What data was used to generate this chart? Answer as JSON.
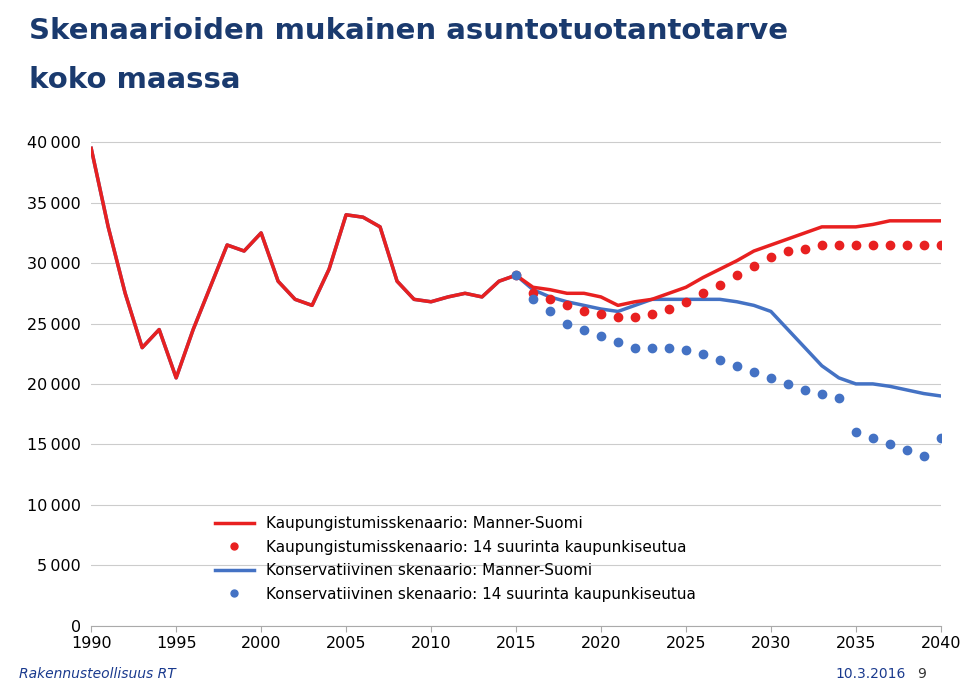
{
  "title_line1": "Skenaarioiden mukainen asuntotuotantotarve",
  "title_line2": "koko maassa",
  "footer_left": "Rakennusteollisuus RT",
  "footer_right": "10.3.2016",
  "footer_num": "9",
  "background_color": "#ffffff",
  "title_color": "#1a3a6e",
  "footer_color": "#1a3a8e",
  "years_all": [
    1990,
    1991,
    1992,
    1993,
    1994,
    1995,
    1996,
    1997,
    1998,
    1999,
    2000,
    2001,
    2002,
    2003,
    2004,
    2005,
    2006,
    2007,
    2008,
    2009,
    2010,
    2011,
    2012,
    2013,
    2014,
    2015,
    2016,
    2017,
    2018,
    2019,
    2020,
    2021,
    2022,
    2023,
    2024,
    2025,
    2026,
    2027,
    2028,
    2029,
    2030,
    2031,
    2032,
    2033,
    2034,
    2035,
    2036,
    2037,
    2038,
    2039,
    2040
  ],
  "kaupungi_manner": [
    39500,
    33000,
    27500,
    23000,
    24500,
    20500,
    24500,
    28000,
    31500,
    31000,
    32500,
    28500,
    27000,
    26500,
    29500,
    34000,
    33800,
    33000,
    28500,
    27000,
    26800,
    27200,
    27500,
    27200,
    28500,
    29000,
    28000,
    27800,
    27500,
    27500,
    27200,
    26500,
    26800,
    27000,
    27500,
    28000,
    28800,
    29500,
    30200,
    31000,
    31500,
    32000,
    32500,
    33000,
    33000,
    33000,
    33200,
    33500,
    33500,
    33500,
    33500
  ],
  "konserv_manner": [
    39500,
    33000,
    27500,
    23000,
    24500,
    20500,
    24500,
    28000,
    31500,
    31000,
    32500,
    28500,
    27000,
    26500,
    29500,
    34000,
    33800,
    33000,
    28500,
    27000,
    26800,
    27200,
    27500,
    27200,
    28500,
    29000,
    27800,
    27200,
    26800,
    26500,
    26200,
    26000,
    26500,
    27000,
    27000,
    27000,
    27000,
    27000,
    26800,
    26500,
    26000,
    24500,
    23000,
    21500,
    20500,
    20000,
    20000,
    19800,
    19500,
    19200,
    19000
  ],
  "years_dot": [
    2015,
    2016,
    2017,
    2018,
    2019,
    2020,
    2021,
    2022,
    2023,
    2024,
    2025,
    2026,
    2027,
    2028,
    2029,
    2030,
    2031,
    2032,
    2033,
    2034,
    2035,
    2036,
    2037,
    2038,
    2039,
    2040
  ],
  "kaupungi_14": [
    29000,
    27500,
    27000,
    26500,
    26000,
    25800,
    25500,
    25500,
    25800,
    26200,
    26800,
    27500,
    28200,
    29000,
    29800,
    30500,
    31000,
    31200,
    31500,
    31500,
    31500,
    31500,
    31500,
    31500,
    31500,
    31500
  ],
  "konserv_14": [
    29000,
    27000,
    26000,
    25000,
    24500,
    24000,
    23500,
    23000,
    23000,
    23000,
    22800,
    22500,
    22000,
    21500,
    21000,
    20500,
    20000,
    19500,
    19200,
    18800,
    16000,
    15500,
    15000,
    14500,
    14000,
    15500
  ],
  "red_color": "#e82020",
  "blue_color": "#4472c4",
  "ylim": [
    0,
    42000
  ],
  "yticks": [
    0,
    5000,
    10000,
    15000,
    20000,
    25000,
    30000,
    35000,
    40000
  ],
  "xticks": [
    1990,
    1995,
    2000,
    2005,
    2010,
    2015,
    2020,
    2025,
    2030,
    2035,
    2040
  ],
  "legend_labels": [
    "Kaupungistumisskenaario: Manner-Suomi",
    "Kaupungistumisskenaario: 14 suurinta kaupunkiseutua",
    "Konservatiivinen skenaario: Manner-Suomi",
    "Konservatiivinen skenaario: 14 suurinta kaupunkiseutua"
  ]
}
